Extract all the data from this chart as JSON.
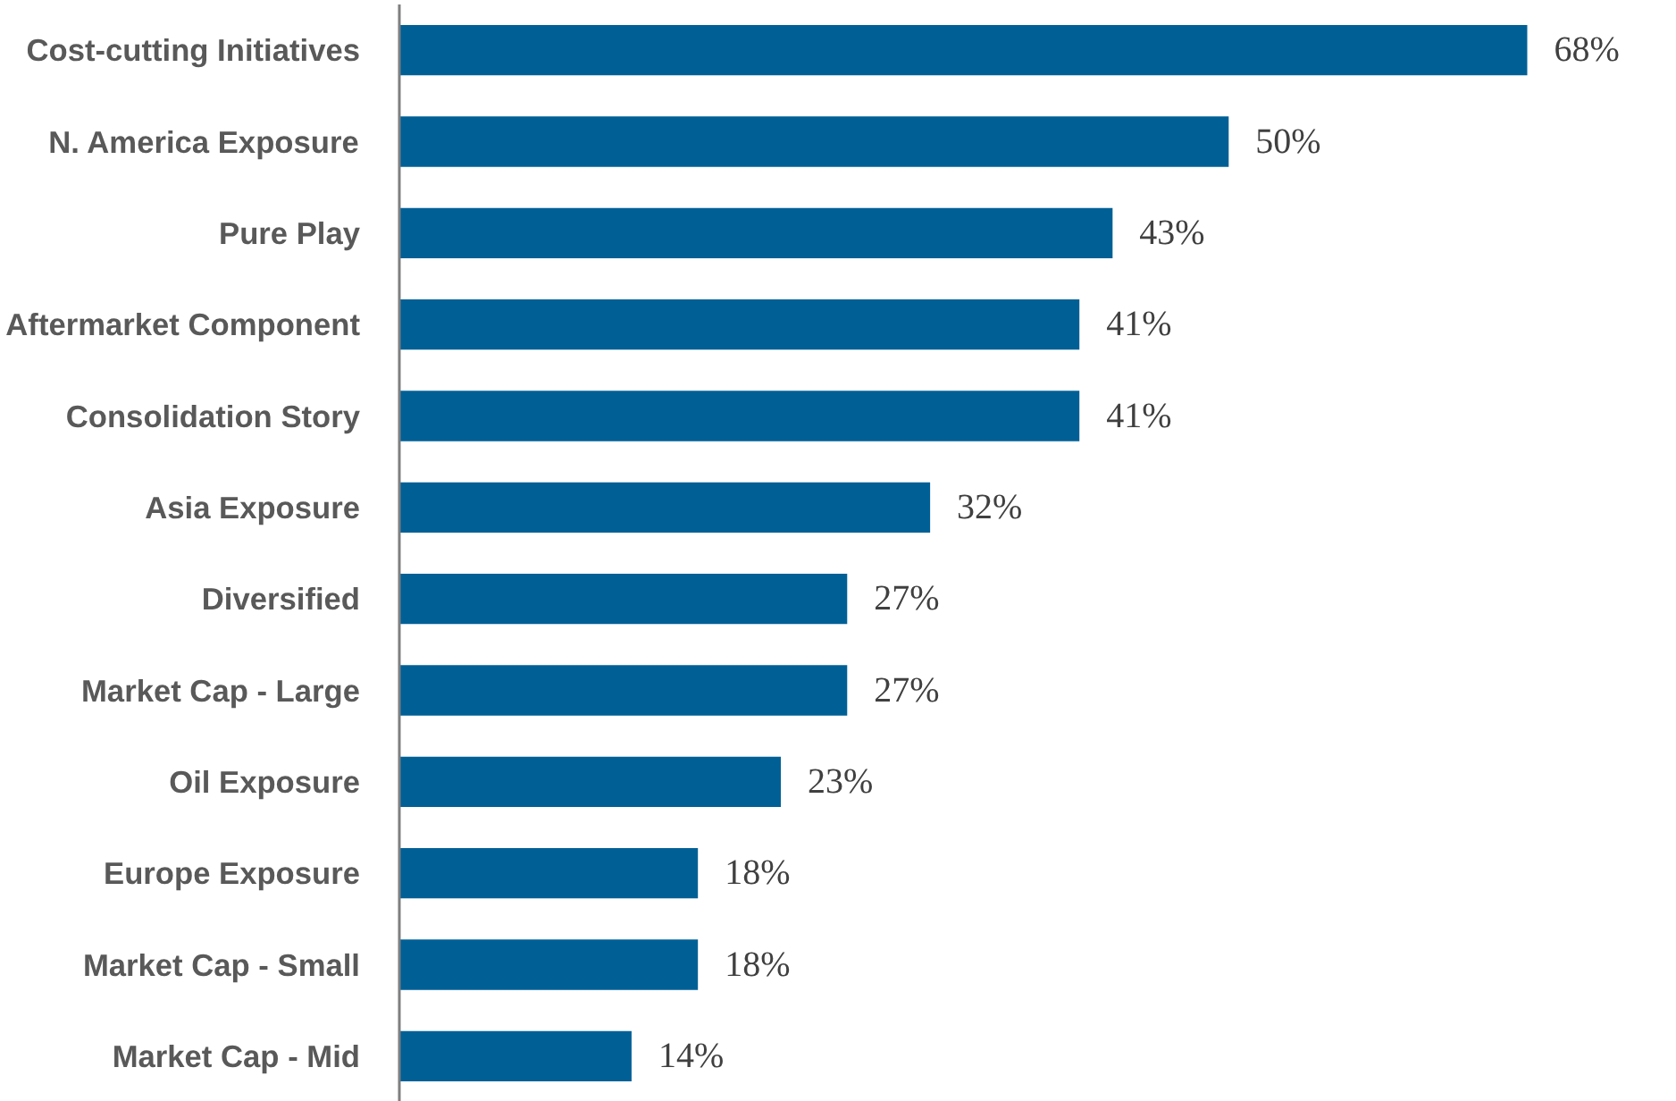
{
  "chart_data": {
    "type": "bar",
    "orientation": "horizontal",
    "color": "#006096",
    "categories": [
      "Cost-cutting Initiatives",
      "N. America Exposure",
      "Pure Play",
      "Aftermarket Component",
      "Consolidation Story",
      "Asia Exposure",
      "Diversified",
      "Market Cap - Large",
      "Oil Exposure",
      "Europe Exposure",
      "Market Cap - Small",
      "Market Cap - Mid"
    ],
    "values": [
      68,
      50,
      43,
      41,
      41,
      32,
      27,
      27,
      23,
      18,
      18,
      14
    ],
    "value_labels": [
      "68%",
      "50%",
      "43%",
      "41%",
      "41%",
      "32%",
      "27%",
      "27%",
      "23%",
      "18%",
      "18%",
      "14%"
    ]
  }
}
